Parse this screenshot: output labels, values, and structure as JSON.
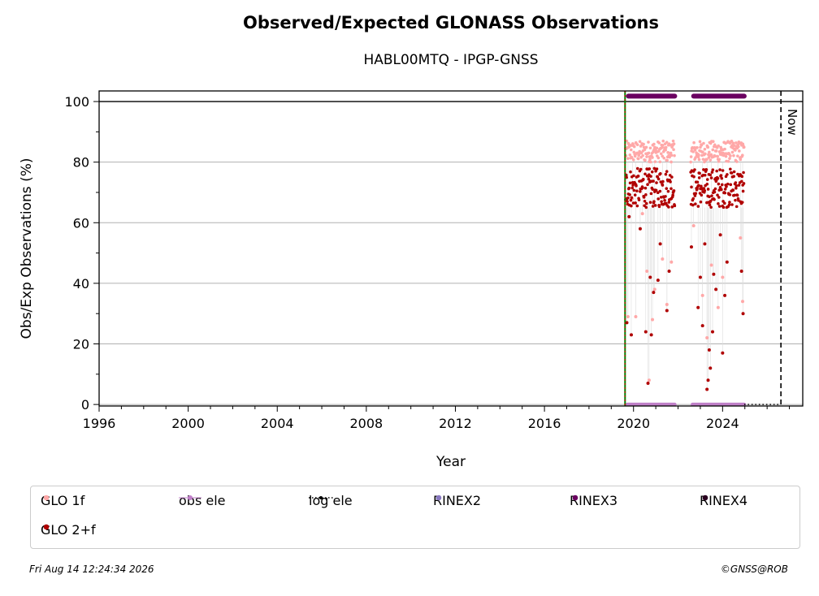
{
  "header": {
    "title": "Observed/Expected GLONASS Observations",
    "subtitle": "HABL00MTQ - IPGP-GNSS"
  },
  "footer": {
    "timestamp": "Fri Aug 14 12:24:34 2026",
    "credit": "©GNSS@ROB"
  },
  "colors": {
    "glo_1f": "#ffa8a8",
    "glo_2f": "#b00000",
    "obs_ele": "#c080c8",
    "log_ele": "#000000",
    "rinex2": "#8878c0",
    "rinex3": "#6a0060",
    "rinex4": "#2a0020",
    "install_line": "#008000"
  },
  "legend": [
    {
      "key": "glo_1f",
      "label": "GLO 1f",
      "marker": "dot"
    },
    {
      "key": "obs_ele",
      "label": "obs ele",
      "marker": "line-dot"
    },
    {
      "key": "log_ele",
      "label": "log ele",
      "marker": "dotted-line"
    },
    {
      "key": "rinex2",
      "label": "RINEX2",
      "marker": "dot"
    },
    {
      "key": "rinex3",
      "label": "RINEX3",
      "marker": "dot"
    },
    {
      "key": "rinex4",
      "label": "RINEX4",
      "marker": "dot"
    },
    {
      "key": "glo_2f",
      "label": "GLO 2+f",
      "marker": "dot"
    }
  ],
  "chart_data": {
    "type": "scatter",
    "title": "Observed/Expected GLONASS Observations",
    "subtitle": "HABL00MTQ - IPGP-GNSS",
    "xlabel": "Year",
    "ylabel": "Obs/Exp Observations (%)",
    "xlim": [
      1996,
      2027.6
    ],
    "ylim": [
      -0.5,
      103.5
    ],
    "xticks": [
      1996,
      2000,
      2004,
      2008,
      2012,
      2016,
      2020,
      2024
    ],
    "yticks": [
      0,
      20,
      40,
      60,
      80,
      100
    ],
    "grid": "y",
    "now_label": "Now",
    "now_year": 2026.62,
    "install_year": 2019.62,
    "reference_line_y": 100,
    "segments": [
      {
        "start": 2019.62,
        "end": 2021.85
      },
      {
        "start": 2022.55,
        "end": 2024.97
      }
    ],
    "series": [
      {
        "name": "GLO 1f",
        "typical": [
          80,
          87
        ],
        "outliers": [
          [
            2019.75,
            29
          ],
          [
            2019.95,
            68
          ],
          [
            2020.1,
            29
          ],
          [
            2020.4,
            63
          ],
          [
            2020.6,
            44
          ],
          [
            2020.7,
            8
          ],
          [
            2020.85,
            28
          ],
          [
            2020.95,
            38
          ],
          [
            2021.3,
            48
          ],
          [
            2021.5,
            33
          ],
          [
            2021.7,
            47
          ],
          [
            2022.7,
            59
          ],
          [
            2023.1,
            36
          ],
          [
            2023.3,
            22
          ],
          [
            2023.5,
            46
          ],
          [
            2023.8,
            32
          ],
          [
            2024.0,
            42
          ],
          [
            2024.8,
            55
          ],
          [
            2024.9,
            34
          ]
        ]
      },
      {
        "name": "GLO 2+f",
        "typical": [
          65,
          78
        ],
        "outliers": [
          [
            2019.7,
            27
          ],
          [
            2019.8,
            62
          ],
          [
            2019.9,
            23
          ],
          [
            2020.3,
            58
          ],
          [
            2020.55,
            24
          ],
          [
            2020.65,
            7
          ],
          [
            2020.75,
            42
          ],
          [
            2020.8,
            23
          ],
          [
            2020.9,
            37
          ],
          [
            2021.1,
            41
          ],
          [
            2021.2,
            53
          ],
          [
            2021.5,
            31
          ],
          [
            2021.6,
            44
          ],
          [
            2022.6,
            52
          ],
          [
            2022.9,
            32
          ],
          [
            2023.0,
            42
          ],
          [
            2023.1,
            26
          ],
          [
            2023.2,
            53
          ],
          [
            2023.3,
            5
          ],
          [
            2023.35,
            8
          ],
          [
            2023.4,
            18
          ],
          [
            2023.45,
            12
          ],
          [
            2023.55,
            24
          ],
          [
            2023.6,
            43
          ],
          [
            2023.7,
            38
          ],
          [
            2023.9,
            56
          ],
          [
            2024.0,
            17
          ],
          [
            2024.1,
            36
          ],
          [
            2024.2,
            47
          ],
          [
            2024.85,
            44
          ],
          [
            2024.92,
            30
          ]
        ]
      },
      {
        "name": "obs ele",
        "y": 0
      },
      {
        "name": "log ele",
        "y": 0
      },
      {
        "name": "RINEX3",
        "y": 101.8
      }
    ]
  }
}
